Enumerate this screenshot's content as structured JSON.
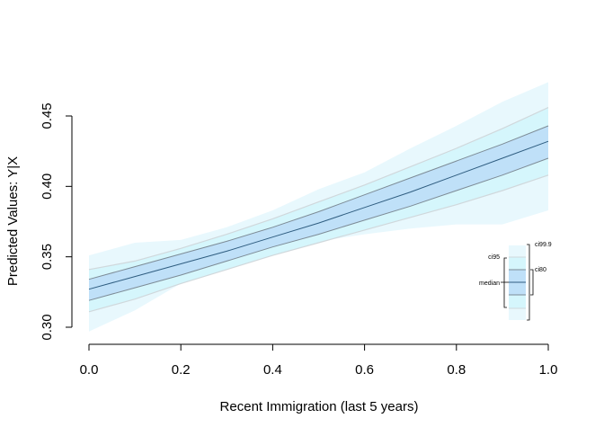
{
  "chart_data": {
    "type": "line",
    "title": "",
    "xlabel": "Recent Immigration (last 5 years)",
    "ylabel": "Predicted Values: Y|X",
    "xlim": [
      0,
      1
    ],
    "ylim": [
      0.3,
      0.45
    ],
    "xticks": [
      "0.0",
      "0.2",
      "0.4",
      "0.6",
      "0.8",
      "1.0"
    ],
    "yticks": [
      "0.30",
      "0.35",
      "0.40",
      "0.45"
    ],
    "grid": false,
    "x": [
      0,
      0.1,
      0.2,
      0.3,
      0.4,
      0.5,
      0.6,
      0.7,
      0.8,
      0.9,
      1.0
    ],
    "median": [
      0.327,
      0.336,
      0.345,
      0.354,
      0.364,
      0.374,
      0.385,
      0.396,
      0.408,
      0.42,
      0.432
    ],
    "ci80": {
      "lower": [
        0.319,
        0.328,
        0.337,
        0.347,
        0.357,
        0.366,
        0.376,
        0.386,
        0.397,
        0.408,
        0.42
      ],
      "upper": [
        0.334,
        0.343,
        0.352,
        0.361,
        0.371,
        0.382,
        0.394,
        0.406,
        0.418,
        0.43,
        0.443
      ]
    },
    "ci95": {
      "lower": [
        0.311,
        0.32,
        0.331,
        0.341,
        0.351,
        0.36,
        0.369,
        0.378,
        0.387,
        0.397,
        0.408
      ],
      "upper": [
        0.341,
        0.347,
        0.356,
        0.366,
        0.377,
        0.389,
        0.401,
        0.414,
        0.427,
        0.441,
        0.456
      ]
    },
    "ci999": {
      "lower": [
        0.297,
        0.312,
        0.331,
        0.343,
        0.355,
        0.361,
        0.366,
        0.37,
        0.373,
        0.373,
        0.383
      ],
      "upper": [
        0.351,
        0.36,
        0.362,
        0.371,
        0.383,
        0.398,
        0.41,
        0.427,
        0.443,
        0.46,
        0.474
      ]
    },
    "legend": {
      "placement": "bottom-right",
      "labels": {
        "ci999": "ci99.9",
        "ci95": "ci95",
        "ci80": "ci80",
        "median": "median"
      }
    },
    "colors": {
      "ci999": "#e8f8fd",
      "ci95": "#d5f6fc",
      "ci80": "#bfe0f8",
      "median": "#2f5d80",
      "ci80_edge": "#7d8b96",
      "ci95_edge": "#d0d8dc"
    }
  }
}
